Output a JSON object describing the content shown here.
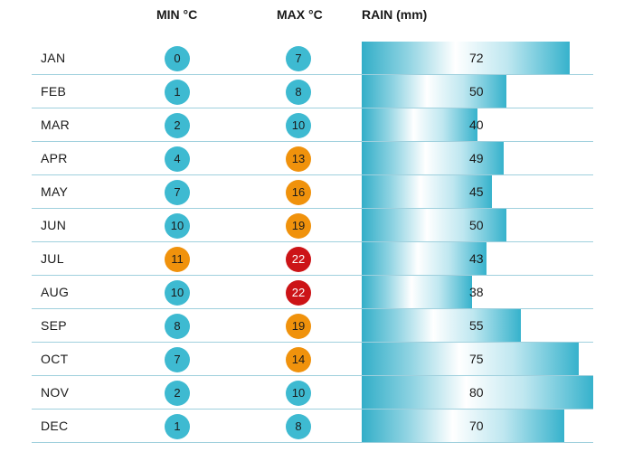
{
  "chart_data": {
    "type": "table",
    "headers": {
      "min": "MIN °C",
      "max": "MAX °C",
      "rain": "RAIN (mm)"
    },
    "months": [
      "JAN",
      "FEB",
      "MAR",
      "APR",
      "MAY",
      "JUN",
      "JUL",
      "AUG",
      "SEP",
      "OCT",
      "NOV",
      "DEC"
    ],
    "min_c": [
      0,
      1,
      2,
      4,
      7,
      10,
      11,
      10,
      8,
      7,
      2,
      1
    ],
    "max_c": [
      7,
      8,
      10,
      13,
      16,
      19,
      22,
      22,
      19,
      14,
      10,
      8
    ],
    "rain_mm": [
      72,
      50,
      40,
      49,
      45,
      50,
      43,
      38,
      55,
      75,
      80,
      70
    ],
    "rain_scale_max": 80
  },
  "colors": {
    "cool": "#3ebad1",
    "warm": "#f0920c",
    "hot": "#cc1417",
    "divider": "#9fd0dd"
  }
}
